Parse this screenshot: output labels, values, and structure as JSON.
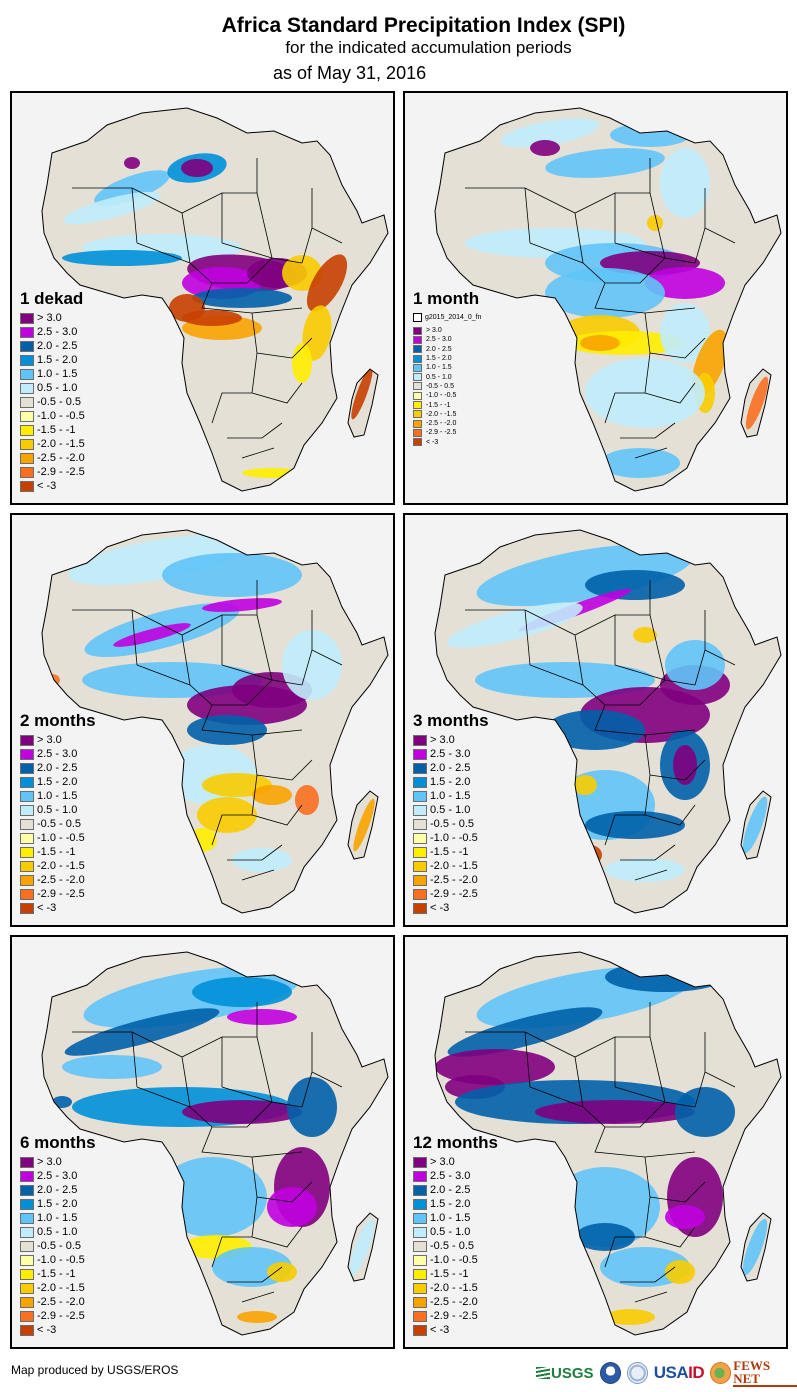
{
  "header": {
    "title": "Africa Standard Precipitation Index (SPI)",
    "subtitle": "for the indicated accumulation periods",
    "date": "as of May 31, 2016"
  },
  "legend_classes": [
    {
      "label": "> 3.0",
      "color": "#800080"
    },
    {
      "label": "2.5 - 3.0",
      "color": "#c000e0"
    },
    {
      "label": "2.0 - 2.5",
      "color": "#0060a8"
    },
    {
      "label": "1.5 - 2.0",
      "color": "#0090d8"
    },
    {
      "label": "1.0 - 1.5",
      "color": "#60c4f8"
    },
    {
      "label": "0.5 - 1.0",
      "color": "#c0ecfc"
    },
    {
      "label": "-0.5 - 0.5",
      "color": "#e4e0d6"
    },
    {
      "label": "-1.0 - -0.5",
      "color": "#ffffa8"
    },
    {
      "label": "-1.5 - -1",
      "color": "#ffee00"
    },
    {
      "label": "-2.0 - -1.5",
      "color": "#f8cc00"
    },
    {
      "label": "-2.5 - -2.0",
      "color": "#f8a400"
    },
    {
      "label": "-2.9 - -2.5",
      "color": "#f87020"
    },
    {
      "label": "< -3",
      "color": "#c84000"
    }
  ],
  "panels": [
    {
      "id": "1-dekad",
      "title": "1 dekad",
      "anomaly": "dry-central-west-east"
    },
    {
      "id": "1-month",
      "title": "1 month",
      "layer_label": "g2015_2014_0_fn",
      "anomaly": "mixed"
    },
    {
      "id": "2-months",
      "title": "2 months",
      "anomaly": "wet"
    },
    {
      "id": "3-months",
      "title": "3 months",
      "anomaly": "wet"
    },
    {
      "id": "6-months",
      "title": "6 months",
      "anomaly": "wet"
    },
    {
      "id": "12-months",
      "title": "12 months",
      "anomaly": "very-wet"
    }
  ],
  "colors": {
    "ocean": "#f3f3f3",
    "land": "#e4e0d6",
    "border": "#000000"
  },
  "footer": {
    "credit": "Map produced by USGS/EROS",
    "logos": [
      "USGS",
      "NOAA",
      "USAID seal",
      "USAID",
      "FEWS NET"
    ],
    "usgs_label": "USGS",
    "usaid_label_a": "USA",
    "usaid_label_b": "ID",
    "fews_label": "FEWS NET"
  }
}
